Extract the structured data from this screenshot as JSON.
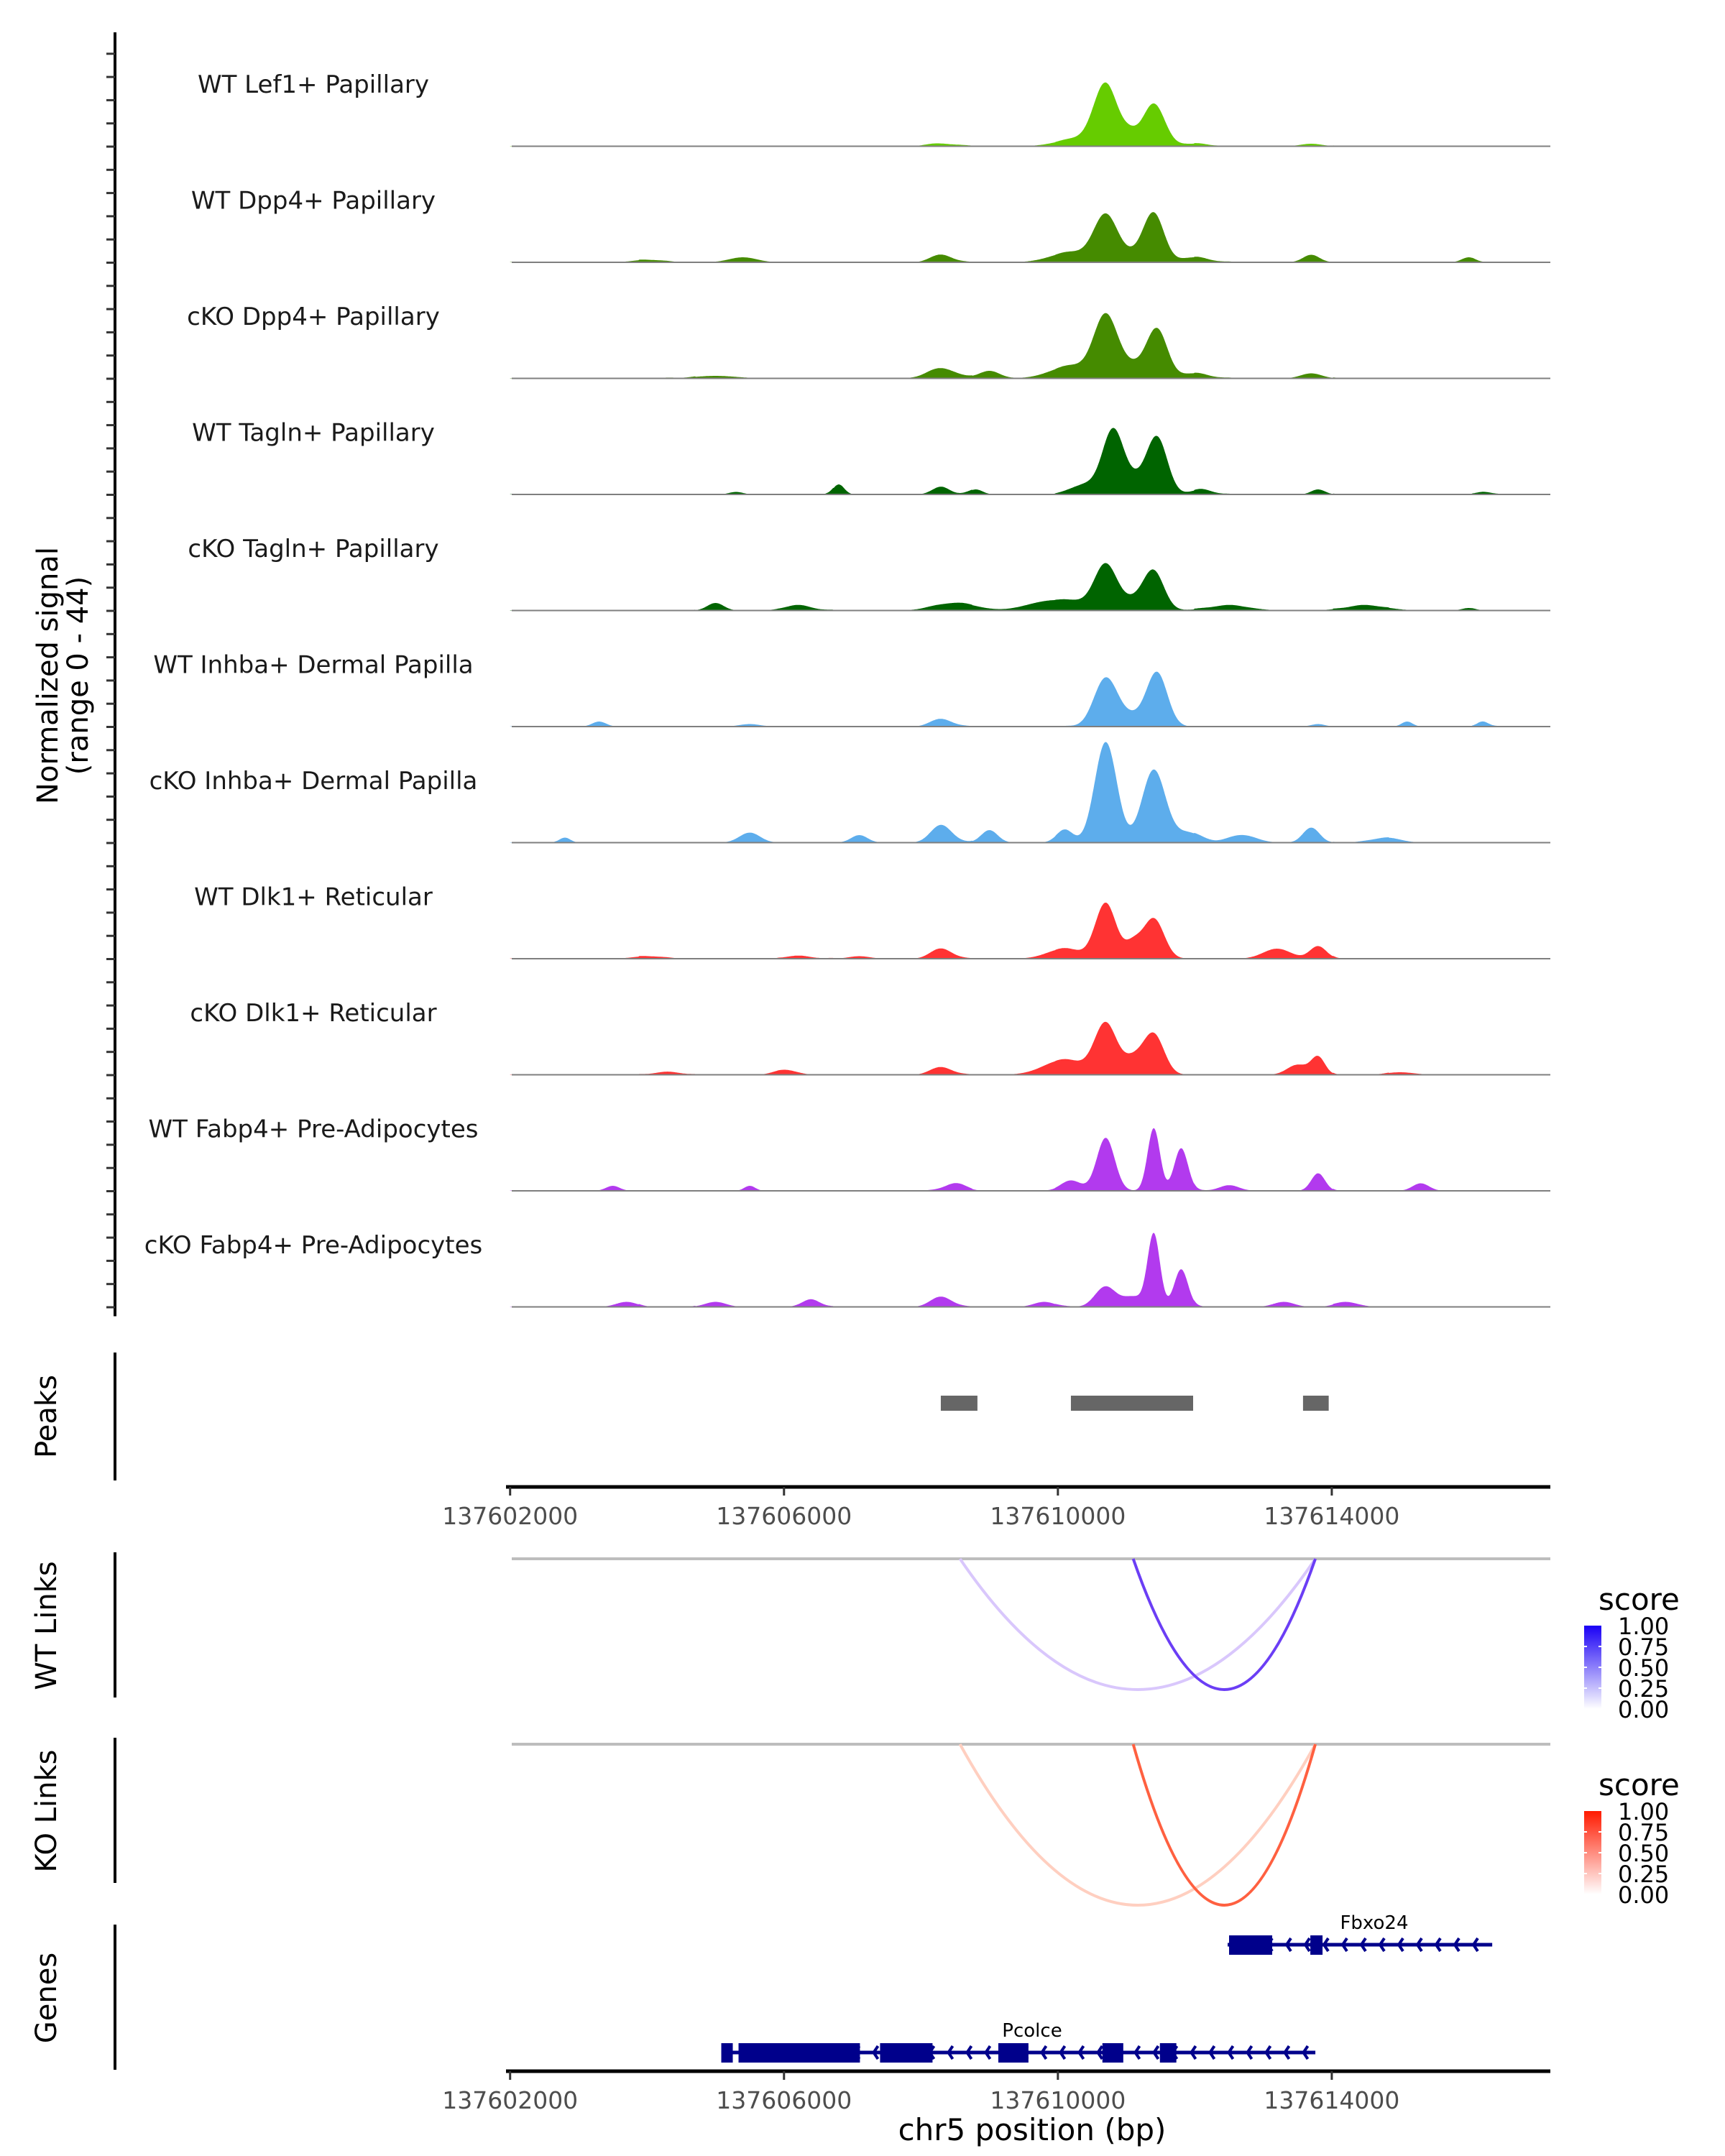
{
  "chart_data": {
    "type": "area",
    "title": "",
    "chromosome": "chr5",
    "xlabel": "chr5 position (bp)",
    "xlim": [
      137601940,
      137616940
    ],
    "x_ticks": [
      137602000,
      137606000,
      137610000,
      137614000
    ],
    "x_tick_labels": [
      "137602000",
      "137606000",
      "137610000",
      "137614000"
    ],
    "coverage": {
      "ylabel_line1": "Normalized signal",
      "ylabel_line2": "(range 0 - 44)",
      "ylim": [
        0,
        44
      ],
      "ticks_per_track": 5,
      "baseline_color": "#7f7f7f",
      "tracks": [
        {
          "name": "WT Lef1+ Papillary",
          "color": "#66CC00",
          "peaks": [
            [
              137610700,
              24,
              170
            ],
            [
              137611400,
              17,
              160
            ],
            [
              137611050,
              4,
              120
            ],
            [
              137610300,
              3,
              300
            ],
            [
              137608300,
              1,
              200
            ],
            [
              137613700,
              1,
              150
            ],
            [
              137612000,
              1,
              200
            ]
          ]
        },
        {
          "name": "WT Dpp4+ Papillary",
          "color": "#458B00",
          "peaks": [
            [
              137610700,
              18,
              170
            ],
            [
              137611400,
              19,
              150
            ],
            [
              137610200,
              4,
              300
            ],
            [
              137611100,
              3,
              200
            ],
            [
              137608300,
              3,
              150
            ],
            [
              137605400,
              2,
              200
            ],
            [
              137613700,
              3,
              120
            ],
            [
              137616000,
              2,
              100
            ],
            [
              137612000,
              2,
              200
            ],
            [
              137604000,
              1,
              200
            ]
          ]
        },
        {
          "name": "cKO Dpp4+ Papillary",
          "color": "#458B00",
          "peaks": [
            [
              137610700,
              24,
              170
            ],
            [
              137611450,
              19,
              150
            ],
            [
              137611100,
              5,
              200
            ],
            [
              137610200,
              5,
              300
            ],
            [
              137608300,
              4,
              200
            ],
            [
              137609000,
              3,
              150
            ],
            [
              137613700,
              2,
              150
            ],
            [
              137605000,
              1,
              300
            ],
            [
              137612000,
              2,
              200
            ]
          ]
        },
        {
          "name": "WT Tagln+ Papillary",
          "color": "#006400",
          "peaks": [
            [
              137610800,
              24,
              150
            ],
            [
              137611450,
              22,
              150
            ],
            [
              137611100,
              6,
              200
            ],
            [
              137610400,
              4,
              200
            ],
            [
              137608300,
              3,
              120
            ],
            [
              137606800,
              4,
              80
            ],
            [
              137613800,
              2,
              100
            ],
            [
              137608800,
              2,
              100
            ],
            [
              137605300,
              1,
              100
            ],
            [
              137616200,
              1,
              100
            ],
            [
              137612100,
              2,
              150
            ]
          ]
        },
        {
          "name": "cKO Tagln+ Papillary",
          "color": "#006400",
          "peaks": [
            [
              137610700,
              17,
              160
            ],
            [
              137611400,
              15,
              150
            ],
            [
              137611100,
              4,
              200
            ],
            [
              137610300,
              3,
              300
            ],
            [
              137605000,
              3,
              120
            ],
            [
              137608500,
              3,
              300
            ],
            [
              137609800,
              3,
              300
            ],
            [
              137606200,
              2,
              200
            ],
            [
              137612500,
              2,
              300
            ],
            [
              137614500,
              2,
              300
            ],
            [
              137616000,
              1,
              100
            ]
          ]
        },
        {
          "name": "WT Inhba+ Dermal Papilla",
          "color": "#5DADEC",
          "peaks": [
            [
              137610700,
              19,
              170
            ],
            [
              137611450,
              21,
              150
            ],
            [
              137611100,
              4,
              200
            ],
            [
              137608300,
              3,
              150
            ],
            [
              137603300,
              2,
              100
            ],
            [
              137616200,
              2,
              80
            ],
            [
              137605500,
              1,
              150
            ],
            [
              137613800,
              1,
              100
            ],
            [
              137615100,
              2,
              80
            ]
          ]
        },
        {
          "name": "cKO Inhba+ Dermal Papilla",
          "color": "#5DADEC",
          "peaks": [
            [
              137610700,
              40,
              160
            ],
            [
              137611400,
              29,
              170
            ],
            [
              137610100,
              5,
              120
            ],
            [
              137611900,
              4,
              200
            ],
            [
              137608300,
              7,
              150
            ],
            [
              137609000,
              5,
              120
            ],
            [
              137605500,
              4,
              150
            ],
            [
              137613700,
              6,
              120
            ],
            [
              137602800,
              2,
              80
            ],
            [
              137607100,
              3,
              120
            ],
            [
              137614800,
              2,
              200
            ],
            [
              137612700,
              3,
              200
            ]
          ]
        },
        {
          "name": "WT Dlk1+ Reticular",
          "color": "#FF3333",
          "peaks": [
            [
              137610700,
              22,
              150
            ],
            [
              137611400,
              16,
              150
            ],
            [
              137611100,
              6,
              120
            ],
            [
              137610100,
              4,
              250
            ],
            [
              137608300,
              4,
              150
            ],
            [
              137613800,
              5,
              120
            ],
            [
              137613200,
              4,
              200
            ],
            [
              137604000,
              1,
              200
            ],
            [
              137606200,
              1,
              200
            ],
            [
              137607100,
              1,
              150
            ]
          ]
        },
        {
          "name": "cKO Dlk1+ Reticular",
          "color": "#FF3333",
          "peaks": [
            [
              137610700,
              20,
              160
            ],
            [
              137611400,
              16,
              150
            ],
            [
              137611100,
              6,
              150
            ],
            [
              137610100,
              6,
              300
            ],
            [
              137608300,
              3,
              150
            ],
            [
              137613800,
              7,
              100
            ],
            [
              137613500,
              4,
              150
            ],
            [
              137604300,
              1,
              200
            ],
            [
              137606000,
              2,
              150
            ],
            [
              137615000,
              1,
              200
            ]
          ]
        },
        {
          "name": "WT Fabp4+ Pre-Adipocytes",
          "color": "#B23AEE",
          "peaks": [
            [
              137610700,
              21,
              130
            ],
            [
              137611400,
              25,
              90
            ],
            [
              137611800,
              17,
              100
            ],
            [
              137610200,
              4,
              150
            ],
            [
              137613800,
              7,
              100
            ],
            [
              137608500,
              3,
              150
            ],
            [
              137603500,
              2,
              100
            ],
            [
              137615300,
              3,
              120
            ],
            [
              137605500,
              2,
              80
            ],
            [
              137612500,
              2,
              150
            ]
          ]
        },
        {
          "name": "cKO Fabp4+ Pre-Adipocytes",
          "color": "#B23AEE",
          "peaks": [
            [
              137610700,
              8,
              150
            ],
            [
              137611400,
              29,
              90
            ],
            [
              137611800,
              15,
              100
            ],
            [
              137611100,
              4,
              150
            ],
            [
              137608300,
              4,
              150
            ],
            [
              137606400,
              3,
              120
            ],
            [
              137605000,
              2,
              150
            ],
            [
              137603700,
              2,
              150
            ],
            [
              137613300,
              2,
              150
            ],
            [
              137609800,
              2,
              150
            ],
            [
              137614200,
              2,
              150
            ]
          ]
        }
      ]
    },
    "peaks_track": {
      "label": "Peaks",
      "color": "#666666",
      "regions": [
        [
          137608290,
          137608825
        ],
        [
          137610190,
          137611975
        ],
        [
          137613580,
          137613955
        ]
      ]
    },
    "links": [
      {
        "label": "WT Links",
        "legend_title": "score",
        "low_color": "#FFFFFF",
        "high_color": "#1A00F5",
        "arcs": [
          {
            "start": 137608570,
            "end": 137613760,
            "score": 0.25,
            "color": "#D9C7FC"
          },
          {
            "start": 137611100,
            "end": 137613760,
            "score": 0.75,
            "color": "#6B3EF5"
          }
        ]
      },
      {
        "label": "KO Links",
        "legend_title": "score",
        "low_color": "#FFFFFF",
        "high_color": "#FF1A00",
        "arcs": [
          {
            "start": 137608570,
            "end": 137613760,
            "score": 0.25,
            "color": "#FFCFC0"
          },
          {
            "start": 137611100,
            "end": 137613760,
            "score": 0.75,
            "color": "#FF6040"
          }
        ]
      }
    ],
    "legend_ticks": [
      "1.00",
      "0.75",
      "0.50",
      "0.25",
      "0.00"
    ],
    "genes": {
      "label": "Genes",
      "color": "#00008B",
      "items": [
        {
          "name": "Fbxo24",
          "strand": "-",
          "start": 137612479,
          "end": 137616343,
          "exons": [
            [
              137612500,
              137613130
            ],
            [
              137613687,
              137613865
            ]
          ]
        },
        {
          "name": "Pcolce",
          "strand": "-",
          "start": 137605084,
          "end": 137613760,
          "exons": [
            [
              137605084,
              137605252
            ],
            [
              137605336,
              137607109
            ],
            [
              137607403,
              137608169
            ],
            [
              137609130,
              137609570
            ],
            [
              137610650,
              137610955
            ],
            [
              137611490,
              137611730
            ]
          ]
        }
      ]
    }
  }
}
